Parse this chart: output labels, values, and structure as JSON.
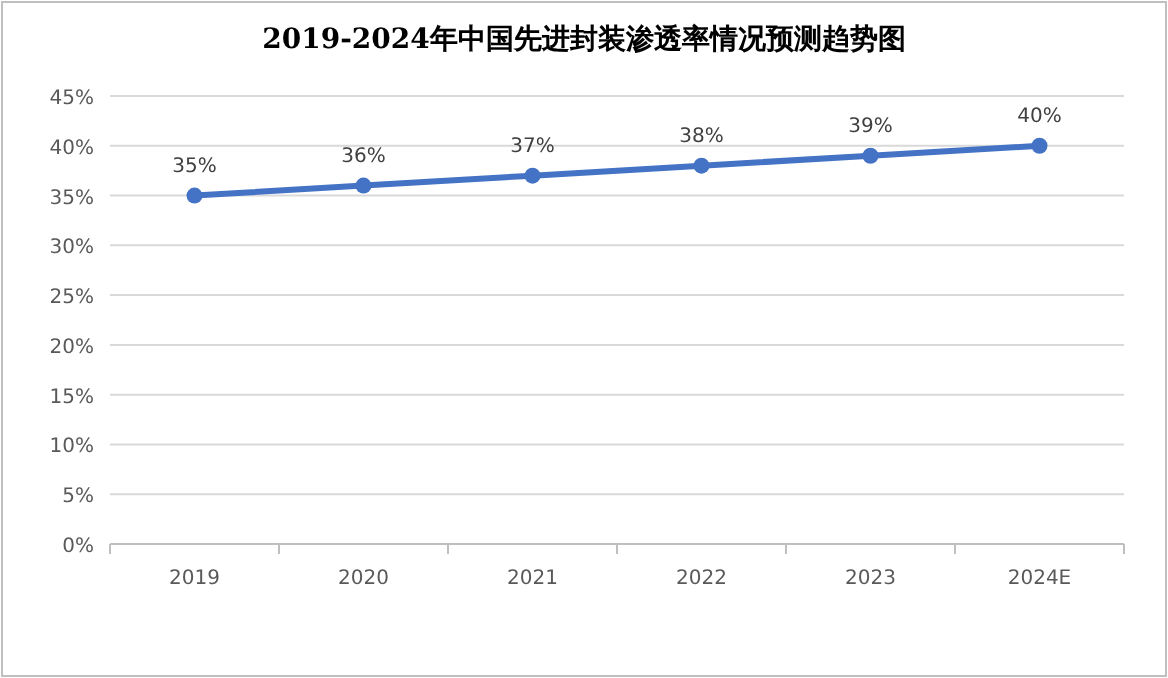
{
  "chart_data": {
    "type": "line",
    "title": "2019-2024年中国先进封装渗透率情况预测趋势图",
    "categories": [
      "2019",
      "2020",
      "2021",
      "2022",
      "2023",
      "2024E"
    ],
    "series": [
      {
        "color": "#4472c4",
        "values": [
          35,
          36,
          37,
          38,
          39,
          40
        ],
        "value_labels": [
          "35%",
          "36%",
          "37%",
          "38%",
          "39%",
          "40%"
        ]
      }
    ],
    "ylim": [
      0,
      45
    ],
    "yticks": [
      {
        "value": 0,
        "label": "0%"
      },
      {
        "value": 5,
        "label": "5%"
      },
      {
        "value": 10,
        "label": "10%"
      },
      {
        "value": 15,
        "label": "15%"
      },
      {
        "value": 20,
        "label": "20%"
      },
      {
        "value": 25,
        "label": "25%"
      },
      {
        "value": 30,
        "label": "30%"
      },
      {
        "value": 35,
        "label": "35%"
      },
      {
        "value": 40,
        "label": "40%"
      },
      {
        "value": 45,
        "label": "45%"
      }
    ],
    "grid": "y",
    "marker": "circle",
    "line_style": "solid"
  }
}
